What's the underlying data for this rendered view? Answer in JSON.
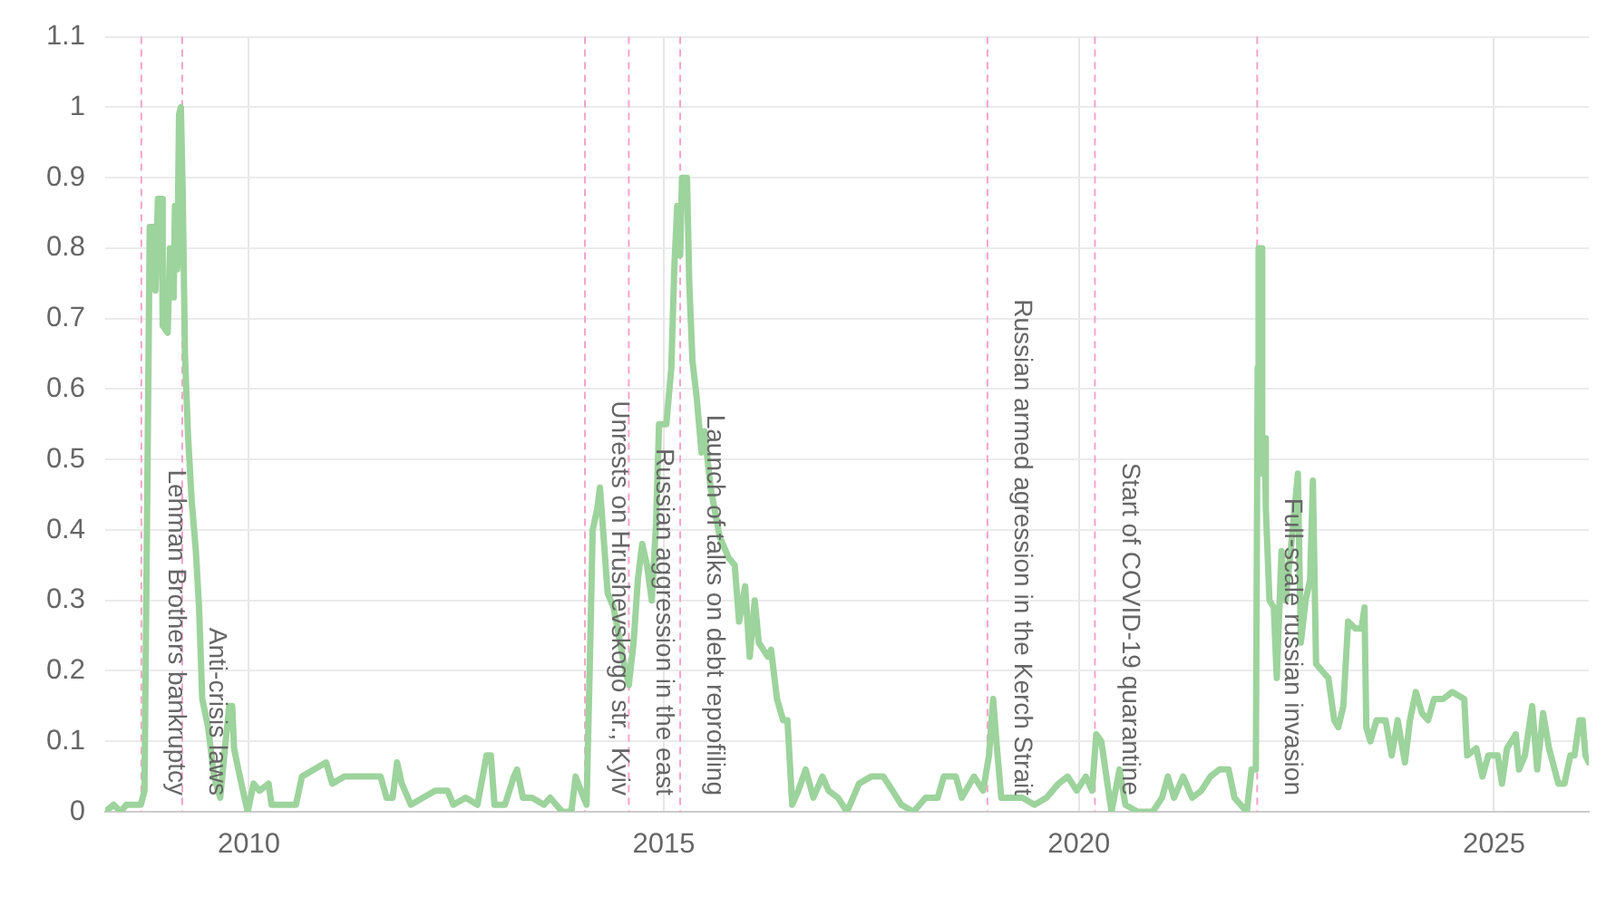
{
  "chart_data": {
    "type": "line",
    "x": [
      "2008-04-09",
      "2008-05-16",
      "2008-06-17",
      "2008-07-11",
      "2008-08-12",
      "2008-09-13",
      "2008-09-29",
      "2008-10-22",
      "2008-11-08",
      "2008-11-16",
      "2008-11-27",
      "2008-12-13",
      "2008-12-18",
      "2009-01-09",
      "2009-01-19",
      "2009-02-04",
      "2009-02-10",
      "2009-02-20",
      "2009-02-28",
      "2009-03-08",
      "2009-03-16",
      "2009-03-26",
      "2009-04-09",
      "2009-04-25",
      "2009-05-13",
      "2009-05-27",
      "2009-06-10",
      "2009-07-06",
      "2009-08-01",
      "2009-08-28",
      "2009-09-24",
      "2009-10-07",
      "2009-10-20",
      "2009-10-28",
      "2009-11-16",
      "2009-12-13",
      "2009-12-27",
      "2010-01-22",
      "2010-02-17",
      "2010-03-29",
      "2010-04-11",
      "2010-06-04",
      "2010-07-27",
      "2010-08-23",
      "2010-10-15",
      "2010-12-07",
      "2011-01-03",
      "2011-02-25",
      "2011-05-16",
      "2011-07-08",
      "2011-08-04",
      "2011-08-30",
      "2011-09-26",
      "2011-10-15",
      "2011-11-05",
      "2011-12-15",
      "2012-02-06",
      "2012-03-31",
      "2012-05-24",
      "2012-06-19",
      "2012-08-12",
      "2012-10-03",
      "2012-11-12",
      "2012-12-01",
      "2012-12-17",
      "2013-02-01",
      "2013-03-12",
      "2013-03-26",
      "2013-04-21",
      "2013-05-31",
      "2013-07-23",
      "2013-08-19",
      "2013-10-11",
      "2013-11-20",
      "2013-12-09",
      "2014-01-13",
      "2014-01-26",
      "2014-02-08",
      "2014-02-22",
      "2014-03-14",
      "2014-03-26",
      "2014-04-11",
      "2014-04-29",
      "2014-05-25",
      "2014-07-04",
      "2014-07-31",
      "2014-08-21",
      "2014-09-09",
      "2014-09-28",
      "2014-10-19",
      "2014-11-09",
      "2014-11-28",
      "2014-12-11",
      "2015-01-12",
      "2015-02-03",
      "2015-02-16",
      "2015-03-01",
      "2015-03-14",
      "2015-03-22",
      "2015-04-13",
      "2015-04-23",
      "2015-05-07",
      "2015-05-25",
      "2015-06-16",
      "2015-06-29",
      "2015-07-26",
      "2015-09-04",
      "2015-10-14",
      "2015-11-09",
      "2015-11-28",
      "2015-12-25",
      "2016-01-14",
      "2016-02-05",
      "2016-02-23",
      "2016-04-03",
      "2016-04-17",
      "2016-05-13",
      "2016-06-09",
      "2016-06-28",
      "2016-07-19",
      "2016-08-15",
      "2016-09-16",
      "2016-10-20",
      "2016-11-29",
      "2016-12-26",
      "2017-02-05",
      "2017-03-17",
      "2017-05-09",
      "2017-07-01",
      "2017-08-24",
      "2017-10-03",
      "2017-11-11",
      "2018-01-04",
      "2018-02-26",
      "2018-04-20",
      "2018-05-17",
      "2018-07-09",
      "2018-08-04",
      "2018-09-27",
      "2018-11-06",
      "2018-12-02",
      "2018-12-20",
      "2019-01-06",
      "2019-01-25",
      "2019-03-06",
      "2019-04-28",
      "2019-06-20",
      "2019-08-12",
      "2019-10-04",
      "2019-11-13",
      "2019-12-23",
      "2020-02-01",
      "2020-02-28",
      "2020-03-18",
      "2020-04-09",
      "2020-05-06",
      "2020-05-24",
      "2020-06-28",
      "2020-07-24",
      "2020-09-16",
      "2020-11-21",
      "2021-01-01",
      "2021-01-27",
      "2021-02-23",
      "2021-04-04",
      "2021-05-14",
      "2021-06-23",
      "2021-08-02",
      "2021-09-11",
      "2021-10-21",
      "2021-11-16",
      "2022-01-09",
      "2022-01-30",
      "2022-02-18",
      "2022-02-26",
      "2022-03-02",
      "2022-03-13",
      "2022-03-18",
      "2022-03-29",
      "2022-04-03",
      "2022-04-19",
      "2022-05-08",
      "2022-05-21",
      "2022-06-11",
      "2022-06-29",
      "2022-07-27",
      "2022-08-22",
      "2022-09-04",
      "2022-09-25",
      "2022-10-15",
      "2022-10-27",
      "2022-11-10",
      "2022-12-06",
      "2023-01-03",
      "2023-01-29",
      "2023-02-16",
      "2023-03-10",
      "2023-03-31",
      "2023-05-02",
      "2023-05-29",
      "2023-06-11",
      "2023-06-19",
      "2023-07-07",
      "2023-08-03",
      "2023-09-12",
      "2023-10-09",
      "2023-11-04",
      "2023-12-06",
      "2023-12-28",
      "2024-01-23",
      "2024-02-19",
      "2024-03-17",
      "2024-04-12",
      "2024-05-22",
      "2024-07-01",
      "2024-08-23",
      "2024-09-05",
      "2024-10-15",
      "2024-11-11",
      "2024-12-07",
      "2025-01-17",
      "2025-02-05",
      "2025-02-27",
      "2025-04-07",
      "2025-04-21",
      "2025-05-17",
      "2025-06-18",
      "2025-07-10",
      "2025-08-05",
      "2025-08-31",
      "2025-10-11",
      "2025-11-07",
      "2025-12-03",
      "2025-12-21",
      "2026-01-12",
      "2026-01-26",
      "2026-02-07",
      "2026-02-22"
    ],
    "series": [
      {
        "color": "#9dd39c",
        "values": [
          0,
          0.01,
          0,
          0.01,
          0.01,
          0.01,
          0.03,
          0.83,
          0.83,
          0.74,
          0.87,
          0.87,
          0.69,
          0.68,
          0.8,
          0.73,
          0.86,
          0.77,
          0.99,
          1,
          0.88,
          0.65,
          0.53,
          0.44,
          0.37,
          0.29,
          0.16,
          0.12,
          0.05,
          0.02,
          0.11,
          0.15,
          0.15,
          0.09,
          0.06,
          0.02,
          0,
          0.04,
          0.03,
          0.04,
          0.01,
          0.01,
          0.01,
          0.05,
          0.06,
          0.07,
          0.04,
          0.05,
          0.05,
          0.05,
          0.05,
          0.02,
          0.02,
          0.07,
          0.04,
          0.01,
          0.02,
          0.03,
          0.03,
          0.01,
          0.02,
          0.01,
          0.08,
          0.08,
          0.01,
          0.01,
          0.05,
          0.06,
          0.02,
          0.02,
          0.01,
          0.02,
          0,
          0,
          0.05,
          0.02,
          0.01,
          0.19,
          0.4,
          0.43,
          0.46,
          0.39,
          0.31,
          0.29,
          0.22,
          0.18,
          0.24,
          0.33,
          0.38,
          0.35,
          0.3,
          0.41,
          0.55,
          0.55,
          0.63,
          0.77,
          0.86,
          0.79,
          0.9,
          0.9,
          0.75,
          0.64,
          0.59,
          0.51,
          0.54,
          0.46,
          0.39,
          0.36,
          0.35,
          0.27,
          0.32,
          0.22,
          0.3,
          0.24,
          0.22,
          0.23,
          0.16,
          0.13,
          0.13,
          0.01,
          0.03,
          0.06,
          0.02,
          0.05,
          0.03,
          0.02,
          0,
          0.04,
          0.05,
          0.05,
          0.03,
          0.01,
          0,
          0.02,
          0.02,
          0.05,
          0.05,
          0.02,
          0.05,
          0.03,
          0.08,
          0.16,
          0.09,
          0.02,
          0.02,
          0.02,
          0.01,
          0.02,
          0.04,
          0.05,
          0.03,
          0.05,
          0.03,
          0.11,
          0.1,
          0.04,
          0,
          0.06,
          0.01,
          0,
          0,
          0.02,
          0.05,
          0.02,
          0.05,
          0.02,
          0.03,
          0.05,
          0.06,
          0.06,
          0.02,
          0,
          0.06,
          0.06,
          0.63,
          0.8,
          0.8,
          0.48,
          0.53,
          0.43,
          0.3,
          0.29,
          0.19,
          0.37,
          0.3,
          0.39,
          0.48,
          0.24,
          0.3,
          0.33,
          0.47,
          0.21,
          0.2,
          0.19,
          0.13,
          0.12,
          0.15,
          0.27,
          0.26,
          0.26,
          0.29,
          0.12,
          0.1,
          0.13,
          0.13,
          0.08,
          0.13,
          0.07,
          0.13,
          0.17,
          0.14,
          0.13,
          0.16,
          0.16,
          0.17,
          0.16,
          0.08,
          0.09,
          0.05,
          0.08,
          0.08,
          0.04,
          0.09,
          0.11,
          0.06,
          0.08,
          0.15,
          0.06,
          0.14,
          0.09,
          0.04,
          0.04,
          0.08,
          0.08,
          0.13,
          0.13,
          0.08,
          0.07
        ]
      }
    ],
    "xlim": [
      "2008-04-09",
      "2026-02-22"
    ],
    "xticks": [
      "2010",
      "2015",
      "2020",
      "2025"
    ],
    "ylim": [
      0,
      1.1
    ],
    "yticks": [
      0,
      0.1,
      0.2,
      0.3,
      0.4,
      0.5,
      0.6,
      0.7,
      0.8,
      0.9,
      1,
      1.1
    ],
    "grid": true,
    "ref_lines": [
      {
        "axis": "x",
        "value": "2008-09-15",
        "label": "Lehman Brothers bankruptcy",
        "color": "#f5a3c9",
        "line_style": "dashed"
      },
      {
        "axis": "x",
        "value": "2009-03-14",
        "label": "Anti-crisis laws",
        "color": "#f5a3c9",
        "line_style": "dashed"
      },
      {
        "axis": "x",
        "value": "2014-01-19",
        "label": "Unrests on Hrushevskogo str., Kyiv",
        "color": "#f5a3c9",
        "line_style": "dashed"
      },
      {
        "axis": "x",
        "value": "2014-07-31",
        "label": "Russian aggression in the east",
        "color": "#f5a3c9",
        "line_style": "dashed"
      },
      {
        "axis": "x",
        "value": "2015-03-14",
        "label": "Launch of talks on debt reprofiling",
        "color": "#f5a3c9",
        "line_style": "dashed"
      },
      {
        "axis": "x",
        "value": "2018-11-25",
        "label": "Russian armed agression in the Kerch Strait",
        "color": "#f5a3c9",
        "line_style": "dashed"
      },
      {
        "axis": "x",
        "value": "2020-03-12",
        "label": "Start of COVID-19 quarantine",
        "color": "#f5a3c9",
        "line_style": "dashed"
      },
      {
        "axis": "x",
        "value": "2022-02-24",
        "label": "Full-scale russian invasion",
        "color": "#f5a3c9",
        "line_style": "dashed"
      }
    ]
  }
}
